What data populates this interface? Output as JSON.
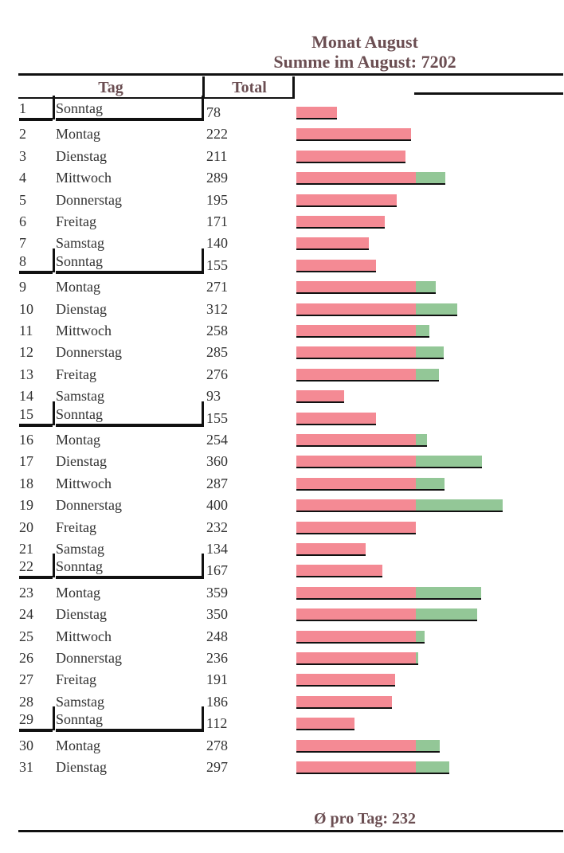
{
  "header": {
    "title": "Monat August",
    "subtitle": "Summe im August: 7202",
    "col_tag": "Tag",
    "col_total": "Total"
  },
  "footer": {
    "average": "Ø pro Tag: 232"
  },
  "colors": {
    "base": "#f48a94",
    "excess": "#93c797",
    "text": "#333333",
    "title": "#6b4e52"
  },
  "chart_data": {
    "type": "bar",
    "orientation": "horizontal",
    "title": "Monat August",
    "subtitle": "Summe im August: 7202",
    "threshold": 232,
    "xlim": [
      0,
      400
    ],
    "rows": [
      {
        "day": "1",
        "weekday": "Sonntag",
        "total": 78
      },
      {
        "day": "2",
        "weekday": "Montag",
        "total": 222
      },
      {
        "day": "3",
        "weekday": "Dienstag",
        "total": 211
      },
      {
        "day": "4",
        "weekday": "Mittwoch",
        "total": 289
      },
      {
        "day": "5",
        "weekday": "Donnerstag",
        "total": 195
      },
      {
        "day": "6",
        "weekday": "Freitag",
        "total": 171
      },
      {
        "day": "7",
        "weekday": "Samstag",
        "total": 140
      },
      {
        "day": "8",
        "weekday": "Sonntag",
        "total": 155
      },
      {
        "day": "9",
        "weekday": "Montag",
        "total": 271
      },
      {
        "day": "10",
        "weekday": "Dienstag",
        "total": 312
      },
      {
        "day": "11",
        "weekday": "Mittwoch",
        "total": 258
      },
      {
        "day": "12",
        "weekday": "Donnerstag",
        "total": 285
      },
      {
        "day": "13",
        "weekday": "Freitag",
        "total": 276
      },
      {
        "day": "14",
        "weekday": "Samstag",
        "total": 93
      },
      {
        "day": "15",
        "weekday": "Sonntag",
        "total": 155
      },
      {
        "day": "16",
        "weekday": "Montag",
        "total": 254
      },
      {
        "day": "17",
        "weekday": "Dienstag",
        "total": 360
      },
      {
        "day": "18",
        "weekday": "Mittwoch",
        "total": 287
      },
      {
        "day": "19",
        "weekday": "Donnerstag",
        "total": 400
      },
      {
        "day": "20",
        "weekday": "Freitag",
        "total": 232
      },
      {
        "day": "21",
        "weekday": "Samstag",
        "total": 134
      },
      {
        "day": "22",
        "weekday": "Sonntag",
        "total": 167
      },
      {
        "day": "23",
        "weekday": "Montag",
        "total": 359
      },
      {
        "day": "24",
        "weekday": "Dienstag",
        "total": 350
      },
      {
        "day": "25",
        "weekday": "Mittwoch",
        "total": 248
      },
      {
        "day": "26",
        "weekday": "Donnerstag",
        "total": 236
      },
      {
        "day": "27",
        "weekday": "Freitag",
        "total": 191
      },
      {
        "day": "28",
        "weekday": "Samstag",
        "total": 186
      },
      {
        "day": "29",
        "weekday": "Sonntag",
        "total": 112
      },
      {
        "day": "30",
        "weekday": "Montag",
        "total": 278
      },
      {
        "day": "31",
        "weekday": "Dienstag",
        "total": 297
      }
    ]
  }
}
